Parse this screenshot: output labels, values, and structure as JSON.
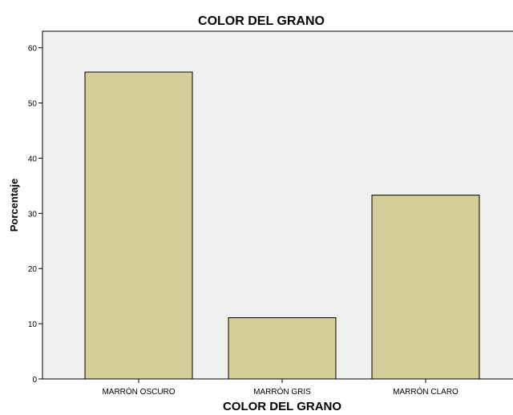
{
  "chart_data": {
    "type": "bar",
    "title": "COLOR DEL GRANO",
    "xlabel": "COLOR DEL GRANO",
    "ylabel": "Porcentaje",
    "categories": [
      "MARRÓN OSCURO",
      "MARRÓN GRIS",
      "MARRÓN CLARO"
    ],
    "values": [
      55.6,
      11.1,
      33.3
    ],
    "ylim": [
      0,
      63
    ],
    "yticks": [
      "0",
      "10",
      "20",
      "30",
      "40",
      "50",
      "60"
    ],
    "grid": false,
    "colors": {
      "bar_fill": "#d3ce97",
      "bar_stroke": "#000000",
      "plot_background": "#f0f0f0"
    }
  }
}
